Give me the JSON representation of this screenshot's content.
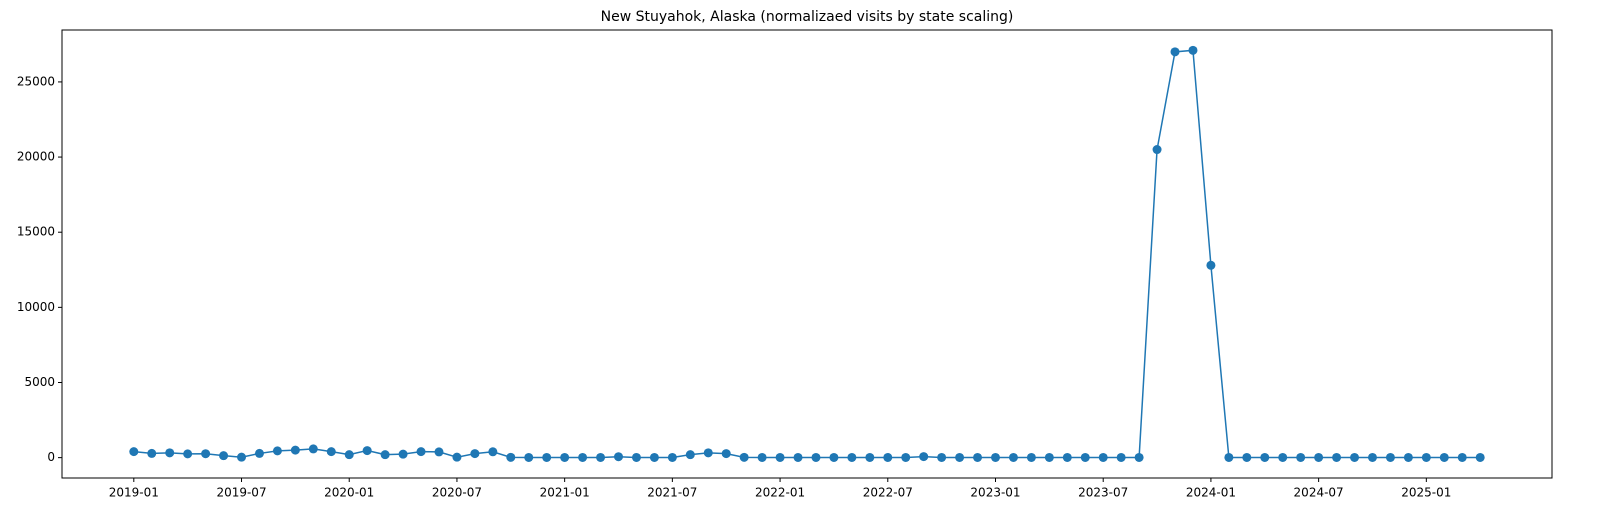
{
  "chart_data": {
    "type": "line",
    "title": "New Stuyahok, Alaska (normalizaed visits by state scaling)",
    "x": [
      "2019-01",
      "2019-02",
      "2019-03",
      "2019-04",
      "2019-05",
      "2019-06",
      "2019-07",
      "2019-08",
      "2019-09",
      "2019-10",
      "2019-11",
      "2019-12",
      "2020-01",
      "2020-02",
      "2020-03",
      "2020-04",
      "2020-05",
      "2020-06",
      "2020-07",
      "2020-08",
      "2020-09",
      "2020-10",
      "2020-11",
      "2020-12",
      "2021-01",
      "2021-02",
      "2021-03",
      "2021-04",
      "2021-05",
      "2021-06",
      "2021-07",
      "2021-08",
      "2021-09",
      "2021-10",
      "2021-11",
      "2021-12",
      "2022-01",
      "2022-02",
      "2022-03",
      "2022-04",
      "2022-05",
      "2022-06",
      "2022-07",
      "2022-08",
      "2022-09",
      "2022-10",
      "2022-11",
      "2022-12",
      "2023-01",
      "2023-02",
      "2023-03",
      "2023-04",
      "2023-05",
      "2023-06",
      "2023-07",
      "2023-08",
      "2023-09",
      "2023-10",
      "2023-11",
      "2023-12",
      "2024-01",
      "2024-02",
      "2024-03",
      "2024-04",
      "2024-05",
      "2024-06",
      "2024-07",
      "2024-08",
      "2024-09",
      "2024-10",
      "2024-11",
      "2024-12",
      "2025-01",
      "2025-02",
      "2025-03",
      "2025-04"
    ],
    "series": [
      {
        "color": "#1f77b4",
        "values": [
          400,
          280,
          320,
          250,
          260,
          130,
          30,
          280,
          450,
          500,
          580,
          400,
          200,
          470,
          200,
          230,
          400,
          380,
          30,
          270,
          390,
          20,
          10,
          10,
          10,
          10,
          10,
          60,
          10,
          10,
          10,
          200,
          320,
          270,
          20,
          10,
          10,
          10,
          10,
          10,
          10,
          10,
          10,
          10,
          70,
          10,
          10,
          10,
          10,
          10,
          10,
          10,
          10,
          10,
          10,
          10,
          10,
          20500,
          27000,
          27100,
          12800,
          10,
          10,
          10,
          10,
          10,
          10,
          10,
          10,
          10,
          10,
          10,
          10,
          10,
          10,
          10
        ]
      }
    ],
    "xlim": [
      "2018-09",
      "2025-08"
    ],
    "xticks": [
      "2019-01",
      "2019-07",
      "2020-01",
      "2020-07",
      "2021-01",
      "2021-07",
      "2022-01",
      "2022-07",
      "2023-01",
      "2023-07",
      "2024-01",
      "2024-07",
      "2025-01"
    ],
    "ylim": [
      -1355,
      28455
    ],
    "yticks": [
      0,
      5000,
      10000,
      15000,
      20000,
      25000
    ],
    "grid": false
  }
}
